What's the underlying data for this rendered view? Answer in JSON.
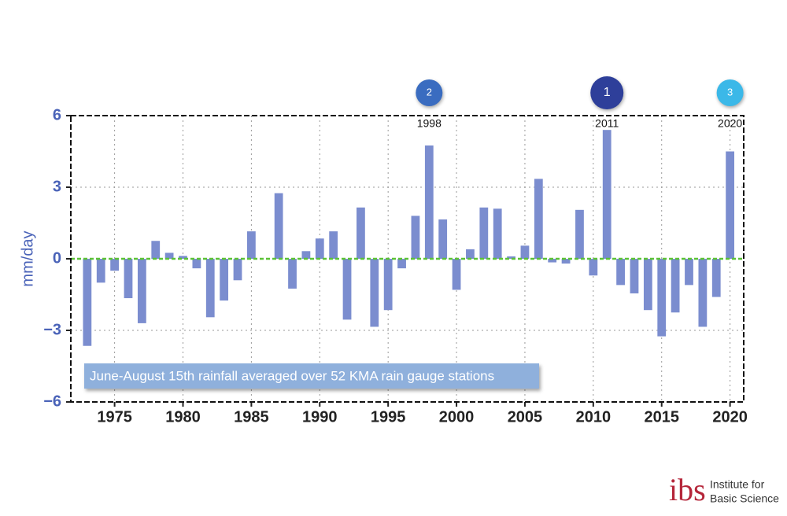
{
  "chart_data": {
    "type": "bar",
    "ylabel": "mm/day",
    "x": [
      1973,
      1974,
      1975,
      1976,
      1977,
      1978,
      1979,
      1980,
      1981,
      1982,
      1983,
      1984,
      1985,
      1986,
      1987,
      1988,
      1989,
      1990,
      1991,
      1992,
      1993,
      1994,
      1995,
      1996,
      1997,
      1998,
      1999,
      2000,
      2001,
      2002,
      2003,
      2004,
      2005,
      2006,
      2007,
      2008,
      2009,
      2010,
      2011,
      2012,
      2013,
      2014,
      2015,
      2016,
      2017,
      2018,
      2019,
      2020
    ],
    "values": [
      -3.65,
      -1.0,
      -0.5,
      -1.65,
      -2.7,
      0.75,
      0.25,
      0.12,
      -0.4,
      -2.45,
      -1.75,
      -0.9,
      1.15,
      0,
      2.75,
      -1.25,
      0.32,
      0.85,
      1.15,
      -2.55,
      2.15,
      -2.85,
      -2.15,
      -0.4,
      1.8,
      4.75,
      1.65,
      -1.3,
      0.4,
      2.15,
      2.1,
      0.1,
      0.55,
      3.35,
      -0.15,
      -0.2,
      2.05,
      -0.7,
      5.4,
      -1.1,
      -1.45,
      -2.15,
      -3.25,
      -2.25,
      -1.1,
      -2.85,
      -1.6,
      4.5
    ],
    "color": "#7b8dcf",
    "xlim": [
      1971.8,
      2021
    ],
    "xticks": [
      1975,
      1980,
      1985,
      1990,
      1995,
      2000,
      2005,
      2010,
      2015,
      2020
    ],
    "ylim": [
      -6,
      6
    ],
    "yticks": [
      6,
      3,
      0,
      {
        "value": -3,
        "label": "−3"
      },
      {
        "value": -6,
        "label": "−6"
      }
    ],
    "grid": true,
    "zero_line_color": "#5bc236",
    "legend_text": "June-August 15th rainfall averaged over 52 KMA rain gauge stations",
    "annotations": [
      {
        "x": 1998,
        "rank": 2,
        "color": "#3a6cc0"
      },
      {
        "x": 2011,
        "rank": 1,
        "color": "#2e3f9a"
      },
      {
        "x": 2020,
        "rank": 3,
        "color": "#3bb8e8"
      }
    ]
  },
  "logo": {
    "mark": "ibs",
    "line1": "Institute for",
    "line2": "Basic Science"
  }
}
